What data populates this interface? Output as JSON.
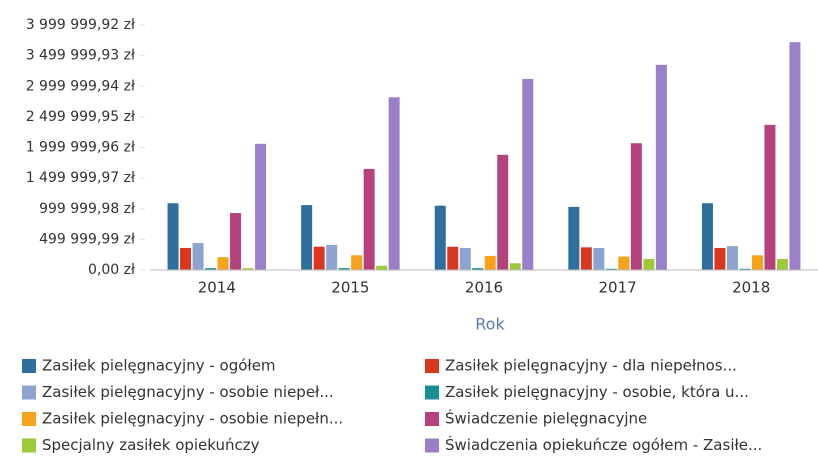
{
  "chart_data": {
    "type": "bar",
    "x_label": "Rok",
    "categories": [
      "2014",
      "2015",
      "2016",
      "2017",
      "2018"
    ],
    "series": [
      {
        "name": "Zasiłek pielęgnacyjny - ogółem",
        "color": "#2e6f9e",
        "values": [
          1090000,
          1060000,
          1050000,
          1030000,
          1090000
        ]
      },
      {
        "name": "Zasiłek pielęgnacyjny - dla niepełnos...",
        "color": "#d9381e",
        "values": [
          360000,
          380000,
          380000,
          370000,
          360000
        ]
      },
      {
        "name": "Zasiłek pielęgnacyjny - osobie niepeł...",
        "color": "#8da4cf",
        "values": [
          440000,
          410000,
          360000,
          360000,
          390000
        ]
      },
      {
        "name": "Zasiłek pielęgnacyjny - osobie, która u...",
        "color": "#1a8c94",
        "values": [
          30000,
          30000,
          30000,
          20000,
          20000
        ]
      },
      {
        "name": "Zasiłek pielęgnacyjny -  osobie niepełn...",
        "color": "#f7a21b",
        "values": [
          210000,
          240000,
          230000,
          220000,
          240000
        ]
      },
      {
        "name": "Świadczenie pielęgnacyjne",
        "color": "#b5427a",
        "values": [
          930000,
          1650000,
          1880000,
          2070000,
          2370000
        ]
      },
      {
        "name": "Specjalny zasiłek opiekuńczy",
        "color": "#9ec93a",
        "values": [
          30000,
          70000,
          110000,
          180000,
          180000
        ]
      },
      {
        "name": "Świadczenia opiekuńcze ogółem - Zasiłe...",
        "color": "#9b7fc9",
        "values": [
          2060000,
          2820000,
          3120000,
          3350000,
          3720000
        ]
      }
    ],
    "ylim": [
      0,
      3999999.92
    ],
    "yticks": [
      {
        "value": 0,
        "label": "0,00 zł"
      },
      {
        "value": 499999.99,
        "label": "499 999,99 zł"
      },
      {
        "value": 999999.98,
        "label": "999 999,98 zł"
      },
      {
        "value": 1499999.97,
        "label": "1 499 999,97 zł"
      },
      {
        "value": 1999999.96,
        "label": "1 999 999,96 zł"
      },
      {
        "value": 2499999.95,
        "label": "2 499 999,95 zł"
      },
      {
        "value": 2999999.94,
        "label": "2 999 999,94 zł"
      },
      {
        "value": 3499999.93,
        "label": "3 499 999,93 zł"
      },
      {
        "value": 3999999.92,
        "label": "3 999 999,92 zł"
      }
    ]
  }
}
